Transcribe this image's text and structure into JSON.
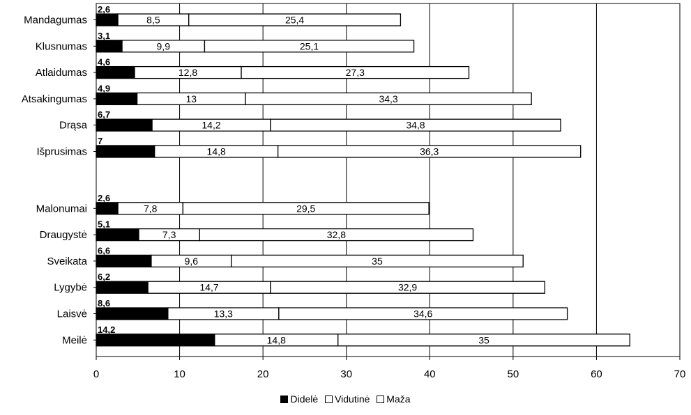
{
  "chart_data": {
    "type": "bar",
    "orientation": "horizontal",
    "stacked": true,
    "categories": [
      "Mandagumas",
      "Klusnumas",
      "Atlaidumas",
      "Atsakingumas",
      "Drąsa",
      "Išprusimas",
      "Malonumai",
      "Draugystė",
      "Sveikata",
      "Lygybė",
      "Laisvė",
      "Meilė"
    ],
    "group_gap_after_index": 5,
    "series": [
      {
        "name": "Didelė",
        "color": "#000000",
        "values": [
          2.6,
          3.1,
          4.6,
          4.9,
          6.7,
          7,
          2.6,
          5.1,
          6.6,
          6.2,
          8.6,
          14.2
        ]
      },
      {
        "name": "Vidutinė",
        "color": "#ffffff",
        "values": [
          8.5,
          9.9,
          12.8,
          13,
          14.2,
          14.8,
          7.8,
          7.3,
          9.6,
          14.7,
          13.3,
          14.8
        ]
      },
      {
        "name": "Maža",
        "color": "#ffffff",
        "values": [
          25.4,
          25.1,
          27.3,
          34.3,
          34.8,
          36.3,
          29.5,
          32.8,
          35,
          32.9,
          34.6,
          35
        ]
      }
    ],
    "labels": {
      "dark": [
        "2,6",
        "3,1",
        "4,6",
        "4,9",
        "6,7",
        "7",
        "2,6",
        "5,1",
        "6,6",
        "6,2",
        "8,6",
        "14,2"
      ],
      "mid": [
        "8,5",
        "9,9",
        "12,8",
        "13",
        "14,2",
        "14,8",
        "7,8",
        "7,3",
        "9,6",
        "14,7",
        "13,3",
        "14,8"
      ],
      "light": [
        "25,4",
        "25,1",
        "27,3",
        "34,3",
        "34,8",
        "36,3",
        "29,5",
        "32,8",
        "35",
        "32,9",
        "34,6",
        "35"
      ]
    },
    "xlim": [
      0,
      70
    ],
    "xticks": [
      0,
      10,
      20,
      30,
      40,
      50,
      60,
      70
    ],
    "grid": "vertical",
    "legend_placement": "bottom-center",
    "legend": [
      "Didelė",
      "Vidutinė",
      "Maža"
    ]
  }
}
